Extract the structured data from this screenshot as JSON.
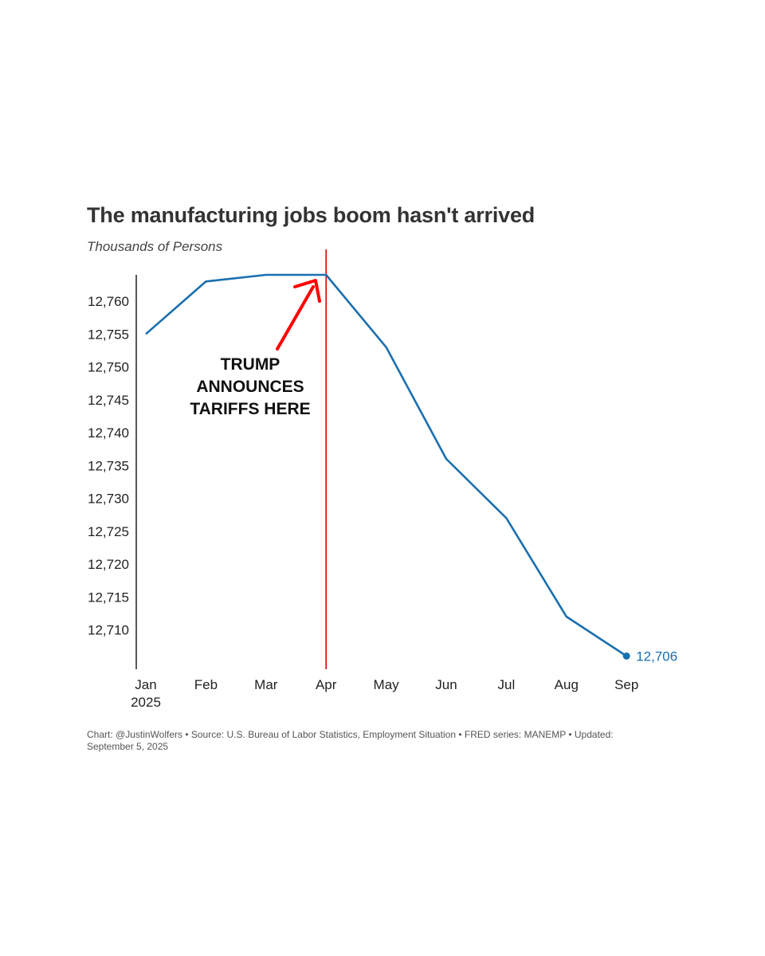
{
  "title": "The manufacturing jobs boom hasn't arrived",
  "subtitle": "Thousands of Persons",
  "footer": "Chart: @JustinWolfers • Source: U.S. Bureau of Labor Statistics, Employment Situation • FRED series: MANEMP • Updated: September 5, 2025",
  "colors": {
    "series": "#1a6faf",
    "annotation_line": "#e00000",
    "arrow": "#ff0000",
    "axis": "#222222"
  },
  "chart_data": {
    "type": "line",
    "title": "The manufacturing jobs boom hasn't arrived",
    "ylabel": "Thousands of Persons",
    "categories": [
      "Jan",
      "Feb",
      "Mar",
      "Apr",
      "May",
      "Jun",
      "Jul",
      "Aug",
      "Sep"
    ],
    "year_label": "2025",
    "series": [
      {
        "values": [
          12755,
          12763,
          12764,
          12764,
          12753,
          12736,
          12727,
          12712,
          12706
        ]
      }
    ],
    "ylim": [
      12704,
      12764
    ],
    "yticks": [
      "12,710",
      "12,715",
      "12,720",
      "12,725",
      "12,730",
      "12,735",
      "12,740",
      "12,745",
      "12,750",
      "12,755",
      "12,760"
    ],
    "ytick_values": [
      12710,
      12715,
      12720,
      12725,
      12730,
      12735,
      12740,
      12745,
      12750,
      12755,
      12760
    ],
    "end_label": "12,706",
    "grid": false,
    "annotation": {
      "category": "Apr",
      "text_lines": [
        "TRUMP",
        "ANNOUNCES",
        "TARIFFS HERE"
      ]
    }
  }
}
